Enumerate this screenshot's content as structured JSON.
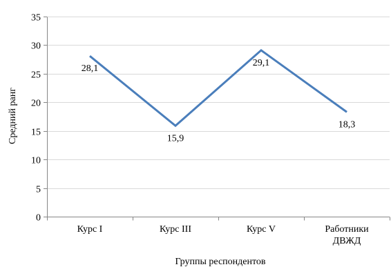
{
  "chart_data": {
    "type": "line",
    "categories": [
      "Курс I",
      "Курс III",
      "Курс V",
      "Работники ДВЖД"
    ],
    "category_lines": [
      [
        "Курс I"
      ],
      [
        "Курс III"
      ],
      [
        "Курс V"
      ],
      [
        "Работники",
        "ДВЖД"
      ]
    ],
    "series": [
      {
        "values": [
          28.1,
          15.9,
          29.1,
          18.3
        ],
        "labels": [
          "28,1",
          "15,9",
          "29,1",
          "18,3"
        ],
        "color": "#4a7ebb"
      }
    ],
    "xlabel": "Группы респондентов",
    "ylabel": "Средний ранг",
    "ylim": [
      0,
      35
    ],
    "yticks": [
      0,
      5,
      10,
      15,
      20,
      25,
      30,
      35
    ],
    "grid": true,
    "legend": "none"
  }
}
